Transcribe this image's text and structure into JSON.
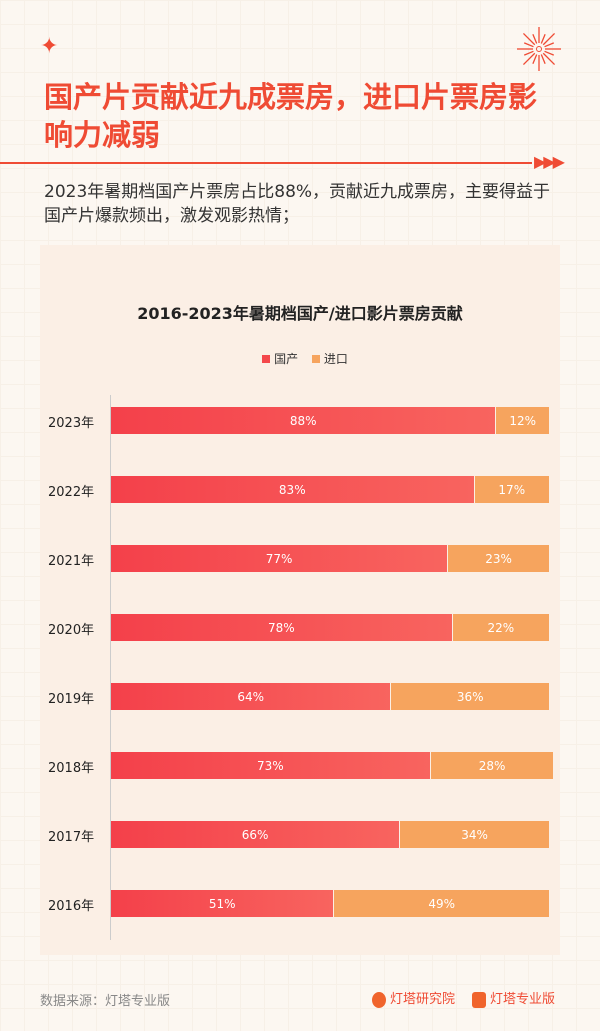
{
  "header": {
    "title": "国产片贡献近九成票房，进口片票房影响力减弱",
    "description": "2023年暑期档国产片票房占比88%，贡献近九成票房，主要得益于国产片爆款频出，激发观影热情；"
  },
  "chart_data": {
    "type": "bar",
    "stacked": true,
    "orientation": "horizontal",
    "title": "2016-2023年暑期档国产/进口影片票房贡献",
    "categories": [
      "2023年",
      "2022年",
      "2021年",
      "2020年",
      "2019年",
      "2018年",
      "2017年",
      "2016年"
    ],
    "series": [
      {
        "name": "国产",
        "color": "#f4484b",
        "values": [
          88,
          83,
          77,
          78,
          64,
          73,
          66,
          51
        ],
        "labels": [
          "88%",
          "83%",
          "77%",
          "78%",
          "64%",
          "73%",
          "66%",
          "51%"
        ]
      },
      {
        "name": "进口",
        "color": "#f6a45e",
        "values": [
          12,
          17,
          23,
          22,
          36,
          28,
          34,
          49
        ],
        "labels": [
          "12%",
          "17%",
          "23%",
          "22%",
          "36%",
          "28%",
          "34%",
          "49%"
        ]
      }
    ],
    "xlim": [
      0,
      100
    ],
    "legend": "top",
    "grid": false
  },
  "footer": {
    "source": "数据来源：灯塔专业版",
    "brand1": "灯塔研究院",
    "brand2": "灯塔专业版"
  }
}
